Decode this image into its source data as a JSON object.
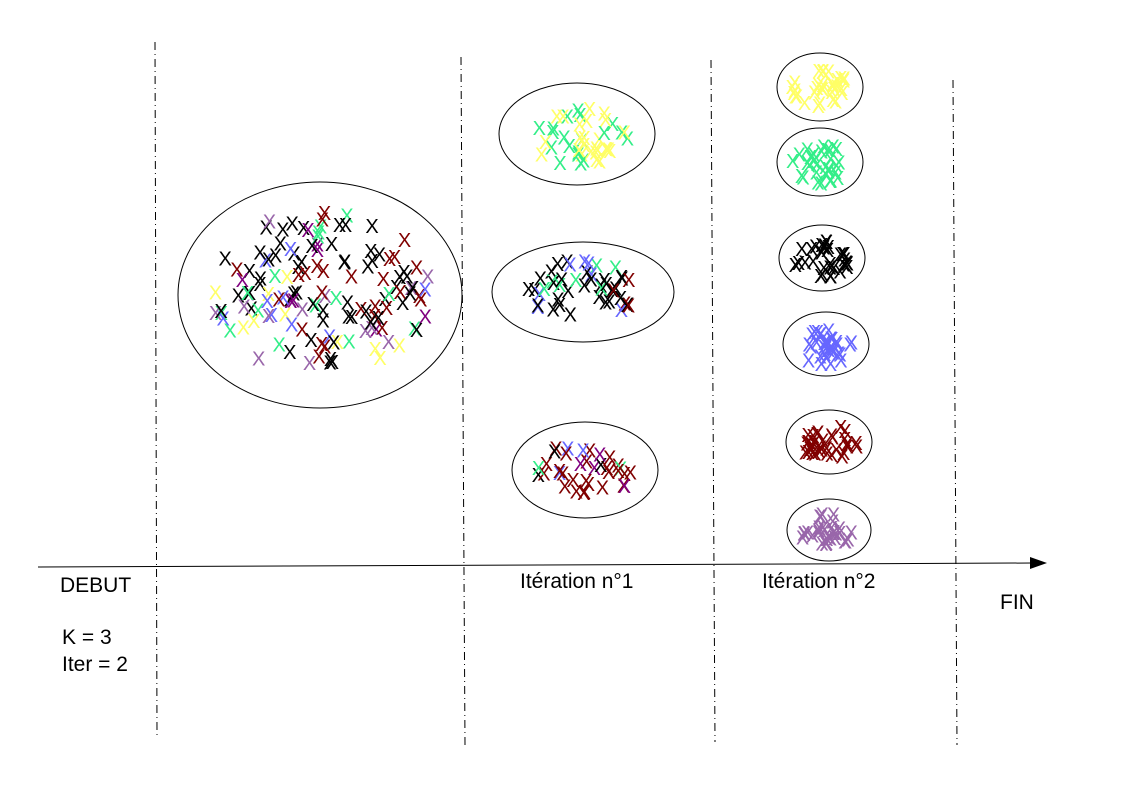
{
  "labels": {
    "start": "DEBUT",
    "k": "K = 3",
    "iter": "Iter = 2",
    "iteration1": "Itération n°1",
    "iteration2": "Itération n°2",
    "end": "FIN"
  },
  "marker": "X",
  "colors": {
    "black": "#000000",
    "darkred": "#800000",
    "green": "#33ee88",
    "yellow": "#ffff66",
    "blue": "#6666ff",
    "mauve": "#9966aa",
    "purple": "#800080",
    "axis": "#000000"
  },
  "stages": [
    {
      "label_key": "start",
      "cluster_count": 1
    },
    {
      "label_key": "iteration1",
      "cluster_count": 3
    },
    {
      "label_key": "iteration2",
      "cluster_count": 6
    },
    {
      "label_key": "end",
      "cluster_count": 0
    }
  ]
}
